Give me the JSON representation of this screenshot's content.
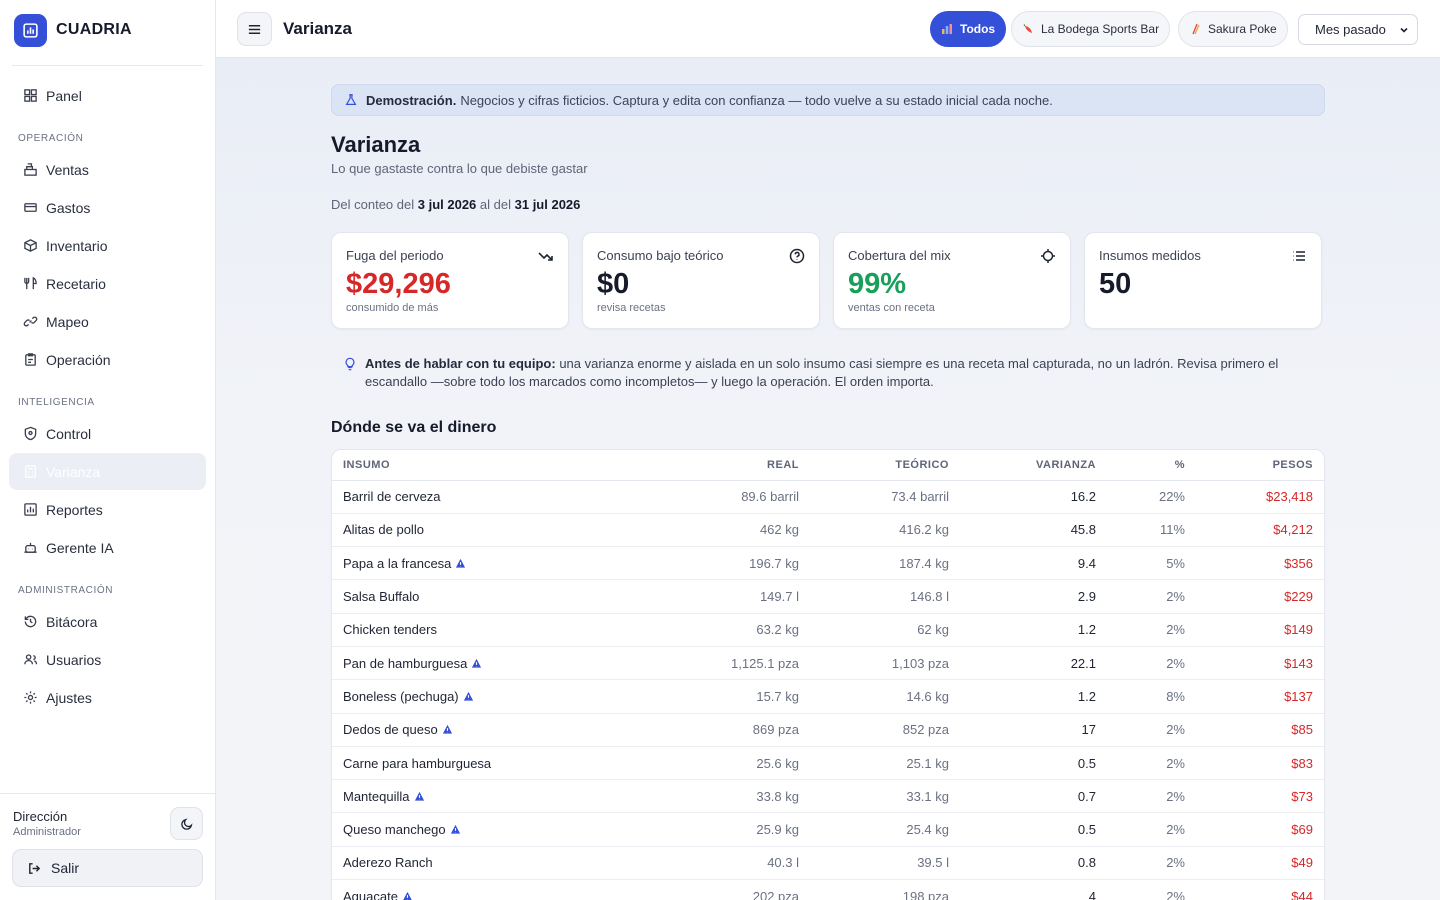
{
  "brand": {
    "name": "CUADRIA"
  },
  "sidebar": {
    "top_items": [
      {
        "label": "Panel",
        "icon": "grid-icon"
      }
    ],
    "sections": [
      {
        "title": "OPERACIÓN",
        "items": [
          {
            "label": "Ventas",
            "icon": "cash-register-icon"
          },
          {
            "label": "Gastos",
            "icon": "card-icon"
          },
          {
            "label": "Inventario",
            "icon": "box-icon"
          },
          {
            "label": "Recetario",
            "icon": "utensils-icon"
          },
          {
            "label": "Mapeo",
            "icon": "link-icon"
          },
          {
            "label": "Operación",
            "icon": "clipboard-icon"
          }
        ]
      },
      {
        "title": "INTELIGENCIA",
        "items": [
          {
            "label": "Control",
            "icon": "shield-icon"
          },
          {
            "label": "Varianza",
            "icon": "calculator-icon",
            "active": true
          },
          {
            "label": "Reportes",
            "icon": "bar-chart-icon"
          },
          {
            "label": "Gerente IA",
            "icon": "robot-icon"
          }
        ]
      },
      {
        "title": "ADMINISTRACIÓN",
        "items": [
          {
            "label": "Bitácora",
            "icon": "history-icon"
          },
          {
            "label": "Usuarios",
            "icon": "users-icon"
          },
          {
            "label": "Ajustes",
            "icon": "gear-icon"
          }
        ]
      }
    ],
    "footer": {
      "user_name": "Dirección",
      "user_role": "Administrador",
      "logout_label": "Salir"
    }
  },
  "topbar": {
    "title": "Varianza",
    "filters": [
      {
        "label": "Todos",
        "active": true
      },
      {
        "label": "La Bodega Sports Bar",
        "active": false
      },
      {
        "label": "Sakura Poke",
        "active": false
      }
    ],
    "period": "Mes pasado"
  },
  "banner": {
    "bold": "Demostración.",
    "text": "Negocios y cifras ficticios. Captura y edita con confianza — todo vuelve a su estado inicial cada noche."
  },
  "page": {
    "title": "Varianza",
    "subtitle": "Lo que gastaste contra lo que debiste gastar",
    "range_prefix": "Del conteo del",
    "range_start": "3 jul 2026",
    "range_mid": "al del",
    "range_end": "31 jul 2026"
  },
  "kpis": [
    {
      "label": "Fuga del periodo",
      "value": "$29,296",
      "foot": "consumido de más",
      "tone": "red",
      "icon": "trend-down-icon"
    },
    {
      "label": "Consumo bajo teórico",
      "value": "$0",
      "foot": "revisa recetas",
      "tone": "dark",
      "icon": "help-circle-icon"
    },
    {
      "label": "Cobertura del mix",
      "value": "99%",
      "foot": "ventas con receta",
      "tone": "green",
      "icon": "crosshair-icon"
    },
    {
      "label": "Insumos medidos",
      "value": "50",
      "foot": "",
      "tone": "dark",
      "icon": "list-icon"
    }
  ],
  "tip": {
    "bold": "Antes de hablar con tu equipo:",
    "text": "una varianza enorme y aislada en un solo insumo casi siempre es una receta mal capturada, no un ladrón. Revisa primero el escandallo —sobre todo los marcados como incompletos— y luego la operación. El orden importa."
  },
  "table": {
    "title": "Dónde se va el dinero",
    "headers": [
      "INSUMO",
      "REAL",
      "TEÓRICO",
      "VARIANZA",
      "%",
      "PESOS"
    ],
    "rows": [
      {
        "name": "Barril de cerveza",
        "warn": false,
        "real": "89.6 barril",
        "teorico": "73.4 barril",
        "varianza": "16.2",
        "pct": "22%",
        "pesos": "$23,418"
      },
      {
        "name": "Alitas de pollo",
        "warn": false,
        "real": "462 kg",
        "teorico": "416.2 kg",
        "varianza": "45.8",
        "pct": "11%",
        "pesos": "$4,212"
      },
      {
        "name": "Papa a la francesa",
        "warn": true,
        "real": "196.7 kg",
        "teorico": "187.4 kg",
        "varianza": "9.4",
        "pct": "5%",
        "pesos": "$356"
      },
      {
        "name": "Salsa Buffalo",
        "warn": false,
        "real": "149.7 l",
        "teorico": "146.8 l",
        "varianza": "2.9",
        "pct": "2%",
        "pesos": "$229"
      },
      {
        "name": "Chicken tenders",
        "warn": false,
        "real": "63.2 kg",
        "teorico": "62 kg",
        "varianza": "1.2",
        "pct": "2%",
        "pesos": "$149"
      },
      {
        "name": "Pan de hamburguesa",
        "warn": true,
        "real": "1,125.1 pza",
        "teorico": "1,103 pza",
        "varianza": "22.1",
        "pct": "2%",
        "pesos": "$143"
      },
      {
        "name": "Boneless (pechuga)",
        "warn": true,
        "real": "15.7 kg",
        "teorico": "14.6 kg",
        "varianza": "1.2",
        "pct": "8%",
        "pesos": "$137"
      },
      {
        "name": "Dedos de queso",
        "warn": true,
        "real": "869 pza",
        "teorico": "852 pza",
        "varianza": "17",
        "pct": "2%",
        "pesos": "$85"
      },
      {
        "name": "Carne para hamburguesa",
        "warn": false,
        "real": "25.6 kg",
        "teorico": "25.1 kg",
        "varianza": "0.5",
        "pct": "2%",
        "pesos": "$83"
      },
      {
        "name": "Mantequilla",
        "warn": true,
        "real": "33.8 kg",
        "teorico": "33.1 kg",
        "varianza": "0.7",
        "pct": "2%",
        "pesos": "$73"
      },
      {
        "name": "Queso manchego",
        "warn": true,
        "real": "25.9 kg",
        "teorico": "25.4 kg",
        "varianza": "0.5",
        "pct": "2%",
        "pesos": "$69"
      },
      {
        "name": "Aderezo Ranch",
        "warn": false,
        "real": "40.3 l",
        "teorico": "39.5 l",
        "varianza": "0.8",
        "pct": "2%",
        "pesos": "$49"
      },
      {
        "name": "Aguacate",
        "warn": true,
        "real": "202 pza",
        "teorico": "198 pza",
        "varianza": "4",
        "pct": "2%",
        "pesos": "$44"
      }
    ]
  },
  "colors": {
    "accent": "#3550d8",
    "danger": "#d62828",
    "success": "#18a05b"
  }
}
